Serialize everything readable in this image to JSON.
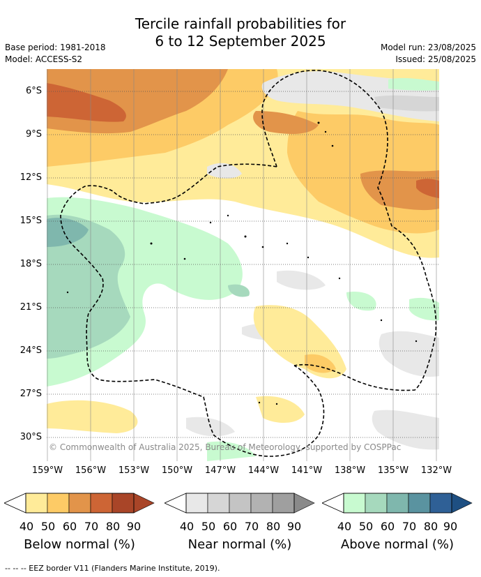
{
  "title_line1": "Tercile rainfall probabilities for",
  "title_line2": "6 to 12 September 2025",
  "base_period": "Base period: 1981-2018",
  "model": "Model: ACCESS-S2",
  "model_run": "Model run: 23/08/2025",
  "issued": "Issued: 25/08/2025",
  "y_ticks": [
    "6°S",
    "9°S",
    "12°S",
    "15°S",
    "18°S",
    "21°S",
    "24°S",
    "27°S",
    "30°S"
  ],
  "x_ticks": [
    "159°W",
    "156°W",
    "153°W",
    "150°W",
    "147°W",
    "144°W",
    "141°W",
    "138°W",
    "135°W",
    "132°W"
  ],
  "copyright": "© Commonwealth of Australia 2025, Bureau of Meteorology, supported by COSPPac",
  "colorbars": [
    {
      "title": "Below normal (%)",
      "ticks": [
        "40",
        "50",
        "60",
        "70",
        "80",
        "90"
      ],
      "colors": [
        "#ffeb99",
        "#fdcb66",
        "#e2944a",
        "#cd6535",
        "#a94528",
        "#a94528"
      ]
    },
    {
      "title": "Near normal (%)",
      "ticks": [
        "40",
        "50",
        "60",
        "70",
        "80",
        "90"
      ],
      "colors": [
        "#e8e8e8",
        "#d6d6d6",
        "#c4c4c4",
        "#b2b2b2",
        "#9f9f9f",
        "#8a8a8a"
      ]
    },
    {
      "title": "Above normal (%)",
      "ticks": [
        "40",
        "50",
        "60",
        "70",
        "80",
        "90"
      ],
      "colors": [
        "#c8fad0",
        "#a6d9bd",
        "#7fb7ad",
        "#5a93a0",
        "#2f6096",
        "#1e4f82"
      ]
    }
  ],
  "footer": "--  --  -- EEZ border V11 (Flanders Marine Institute, 2019)."
}
